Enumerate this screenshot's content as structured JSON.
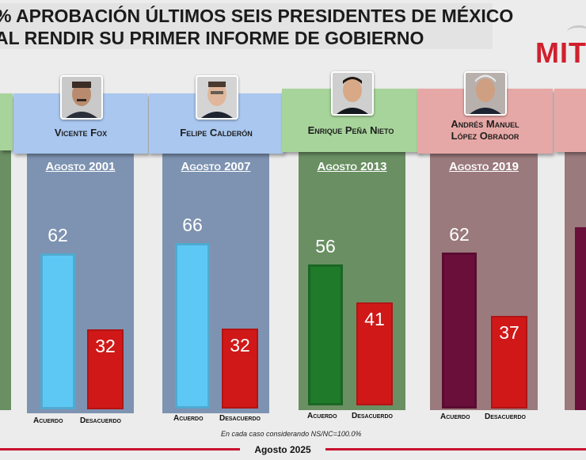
{
  "title": {
    "line1": "% aprobación últimos seis presidentes de México",
    "line2": "al rendir su primer informe de gobierno"
  },
  "brand": "MIT",
  "footnote": "En cada caso considerando NS/NC=100.0%",
  "footer_date": "Agosto 2025",
  "colors": {
    "fox": "#5ec8f5",
    "calderon": "#5ec8f5",
    "pena": "#1f7a2a",
    "amlo": "#6a0f3a",
    "disagree": "#d01818"
  },
  "chart_data": {
    "type": "bar",
    "title": "% aprobación últimos seis presidentes de México al rendir su primer informe de gobierno",
    "categories": [
      "Vicente Fox",
      "Felipe Calderón",
      "Enrique Peña Nieto",
      "Andrés Manuel López Obrador"
    ],
    "dates": [
      "Agosto 2001",
      "Agosto 2007",
      "Agosto 2013",
      "Agosto 2019"
    ],
    "series": [
      {
        "name": "Acuerdo",
        "values": [
          62,
          66,
          56,
          62
        ]
      },
      {
        "name": "Desacuerdo",
        "values": [
          32,
          32,
          41,
          37
        ]
      }
    ],
    "ylim": [
      0,
      100
    ],
    "grid": false
  },
  "presidents": [
    {
      "name": "Vicente Fox",
      "date": "Agosto 2001",
      "agree": "62",
      "disagree": "32",
      "agree_label": "Acuerdo",
      "disagree_label": "Desacuerdo"
    },
    {
      "name": "Felipe Calderón",
      "date": "Agosto 2007",
      "agree": "66",
      "disagree": "32",
      "agree_label": "Acuerdo",
      "disagree_label": "Desacuerdo"
    },
    {
      "name": "Enrique Peña Nieto",
      "date": "Agosto 2013",
      "agree": "56",
      "disagree": "41",
      "agree_label": "Acuerdo",
      "disagree_label": "Desacuerdo"
    },
    {
      "name_line1": "Andrés Manuel",
      "name_line2": "López Obrador",
      "date": "Agosto 2019",
      "agree": "62",
      "disagree": "37",
      "agree_label": "Acuerdo",
      "disagree_label": "Desacuerdo"
    }
  ]
}
